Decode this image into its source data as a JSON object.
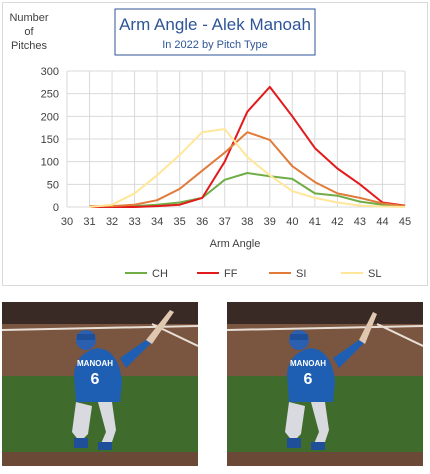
{
  "chart_data": {
    "type": "line",
    "title": "Arm Angle - Alek Manoah",
    "subtitle": "In 2022 by Pitch Type",
    "ylabel_lines": [
      "Number",
      "of",
      "Pitches"
    ],
    "xlabel": "Arm Angle",
    "x": [
      30,
      31,
      32,
      33,
      34,
      35,
      36,
      37,
      38,
      39,
      40,
      41,
      42,
      43,
      44,
      45
    ],
    "xlim": [
      30,
      45
    ],
    "ylim": [
      0,
      300
    ],
    "yticks": [
      0,
      50,
      100,
      150,
      200,
      250,
      300
    ],
    "grid": true,
    "legend_position": "bottom",
    "series": [
      {
        "name": "CH",
        "color": "#70ad47",
        "points": [
          [
            31,
            0
          ],
          [
            32,
            0
          ],
          [
            33,
            2
          ],
          [
            34,
            5
          ],
          [
            35,
            10
          ],
          [
            36,
            20
          ],
          [
            37,
            60
          ],
          [
            38,
            75
          ],
          [
            39,
            68
          ],
          [
            40,
            62
          ],
          [
            41,
            30
          ],
          [
            42,
            25
          ],
          [
            43,
            12
          ],
          [
            44,
            5
          ],
          [
            45,
            2
          ]
        ]
      },
      {
        "name": "FF",
        "color": "#e31a1c",
        "points": [
          [
            31,
            0
          ],
          [
            32,
            0
          ],
          [
            33,
            0
          ],
          [
            34,
            2
          ],
          [
            35,
            5
          ],
          [
            36,
            20
          ],
          [
            37,
            100
          ],
          [
            38,
            210
          ],
          [
            39,
            265
          ],
          [
            40,
            200
          ],
          [
            41,
            130
          ],
          [
            42,
            85
          ],
          [
            43,
            50
          ],
          [
            44,
            10
          ],
          [
            45,
            3
          ]
        ]
      },
      {
        "name": "SI",
        "color": "#e07b39",
        "points": [
          [
            31,
            2
          ],
          [
            32,
            2
          ],
          [
            33,
            5
          ],
          [
            34,
            15
          ],
          [
            35,
            40
          ],
          [
            36,
            80
          ],
          [
            37,
            120
          ],
          [
            38,
            165
          ],
          [
            39,
            148
          ],
          [
            40,
            90
          ],
          [
            41,
            55
          ],
          [
            42,
            30
          ],
          [
            43,
            20
          ],
          [
            44,
            8
          ],
          [
            45,
            2
          ]
        ]
      },
      {
        "name": "SL",
        "color": "#ffe699",
        "points": [
          [
            31,
            0
          ],
          [
            32,
            5
          ],
          [
            33,
            30
          ],
          [
            34,
            70
          ],
          [
            35,
            115
          ],
          [
            36,
            165
          ],
          [
            37,
            172
          ],
          [
            38,
            110
          ],
          [
            39,
            70
          ],
          [
            40,
            35
          ],
          [
            41,
            20
          ],
          [
            42,
            10
          ],
          [
            43,
            3
          ],
          [
            44,
            1
          ],
          [
            45,
            0
          ]
        ]
      }
    ]
  },
  "photos": {
    "left": {
      "jersey_name": "MANOAH",
      "jersey_number": "6"
    },
    "right": {
      "jersey_name": "MANOAH",
      "jersey_number": "6"
    }
  }
}
